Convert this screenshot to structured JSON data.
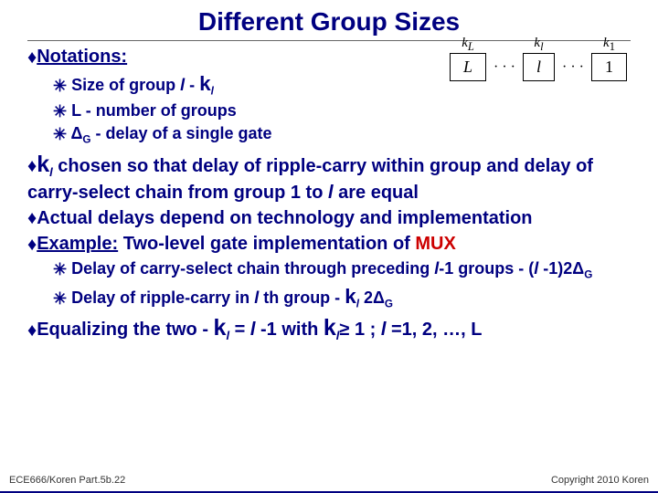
{
  "title": "Different Group Sizes",
  "notations": {
    "heading": "Notations:",
    "sub1_a": "Size of group ",
    "sub1_l": "l",
    "sub1_b": " - ",
    "sub1_k": "k",
    "sub1_ksub": "l",
    "sub2": "L - number of groups",
    "sub3_a": "Δ",
    "sub3_asub": "G",
    "sub3_b": " - delay of a single gate"
  },
  "point_k": {
    "k": "k",
    "ksub": "l",
    "rest_a": " chosen so that delay of ripple-carry within group and delay of carry-select chain from group ",
    "one": "1",
    "rest_b": " to ",
    "l": "l",
    "rest_c": " are equal"
  },
  "point_actual": "Actual delays depend on technology and implementation",
  "point_example": {
    "lead": "Example:",
    "rest": " Two-level gate implementation of ",
    "mux": "MUX"
  },
  "sub_delay_cs": {
    "a": "Delay of carry-select chain through preceding ",
    "l": "l",
    "b": "-1 groups - (",
    "l2": "l",
    "c": " -1)2Δ",
    "csub": "G"
  },
  "sub_delay_rc": {
    "a": "Delay of ripple-carry in ",
    "l": "l",
    "b": " th group  -  ",
    "k": "k",
    "ksub": "l",
    "c": " 2Δ",
    "csub2": "G"
  },
  "point_eq": {
    "a": "Equalizing the two - ",
    "k": "k",
    "ksub": "l",
    "b": " = ",
    "l": "l",
    "c": " -1 with ",
    "k2": "k",
    "k2sub": "l",
    "geq": "≥ 1 ; ",
    "l2": "l",
    "d": " =1, 2, …, L"
  },
  "diagram": {
    "kL_k": "k",
    "kL_sub": "L",
    "kl_k": "k",
    "kl_sub": "l",
    "k1_k": "k",
    "k1_sub": "1",
    "boxL": "L",
    "boxl": "l",
    "box1": "1",
    "dots": "· · ·"
  },
  "footer_left": "ECE666/Koren Part.5b.22",
  "footer_right": "Copyright 2010 Koren"
}
